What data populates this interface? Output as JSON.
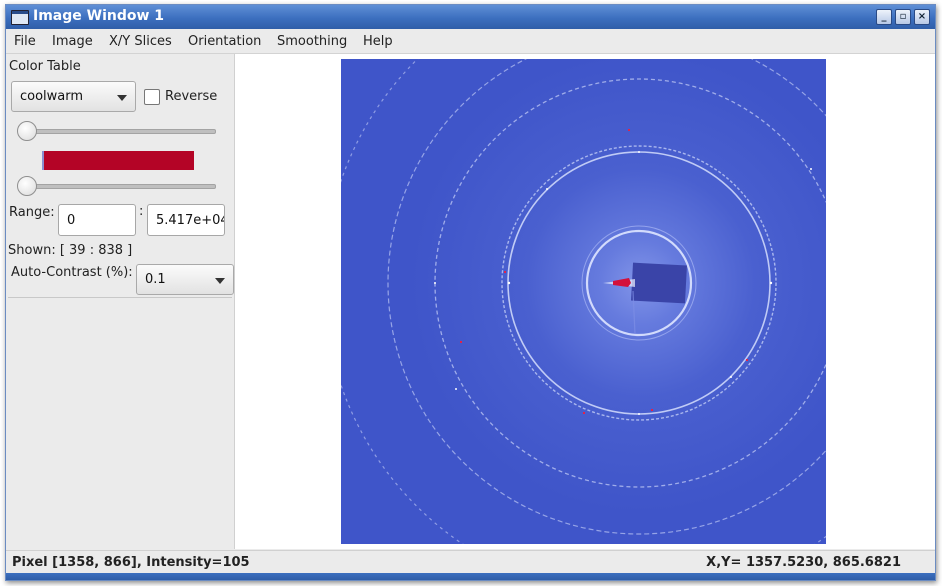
{
  "window": {
    "title": "Image Window 1"
  },
  "menu": [
    "File",
    "Image",
    "X/Y Slices",
    "Orientation",
    "Smoothing",
    "Help"
  ],
  "color_table": {
    "label": "Color Table",
    "selected": "coolwarm",
    "reverse_label": "Reverse",
    "reverse_checked": false,
    "bar_color": "#b40426",
    "slider_top_value": 0,
    "slider_bottom_value": 0
  },
  "range": {
    "label": "Range:",
    "min": "0",
    "separator": ":",
    "max": "5.417e+04"
  },
  "shown": {
    "label": "Shown: [ 39 :  838 ]"
  },
  "auto_contrast": {
    "label": "Auto-Contrast (%):",
    "selected": "0.1"
  },
  "image": {
    "background_color": "#3f55c9",
    "ring_color": "#dfe6ff",
    "beamstop_color": "#3a44a8"
  },
  "status": {
    "pixel": "Pixel [1358, 866],  Intensity=105",
    "xy": "X,Y= 1357.5230, 865.6821"
  }
}
